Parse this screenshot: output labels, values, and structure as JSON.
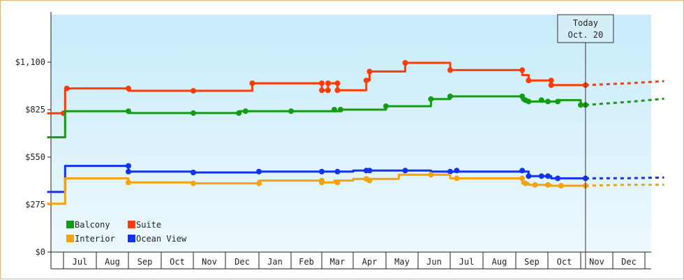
{
  "chart_data": {
    "type": "line",
    "title": "",
    "xlabel": "",
    "ylabel": "",
    "ylim": [
      0,
      1375
    ],
    "yticks": [
      {
        "value": 0,
        "label": "$0"
      },
      {
        "value": 275,
        "label": "$275"
      },
      {
        "value": 550,
        "label": "$550"
      },
      {
        "value": 825,
        "label": "$825"
      },
      {
        "value": 1100,
        "label": "$1,100"
      }
    ],
    "x_months": [
      "Jul",
      "Aug",
      "Sep",
      "Oct",
      "Nov",
      "Dec",
      "Jan",
      "Feb",
      "Mar",
      "Apr",
      "May",
      "Jun",
      "Jul",
      "Aug",
      "Sep",
      "Oct",
      "Nov",
      "Dec"
    ],
    "grid": false,
    "legend_position": "bottom-left",
    "today": {
      "title": "Today",
      "date": "Oct. 20",
      "x": 16.15
    },
    "series": [
      {
        "name": "Suite",
        "color": "#ff3a05",
        "points": [
          [
            -0.5,
            804
          ],
          [
            0.05,
            804
          ],
          [
            0.05,
            948
          ],
          [
            2.0,
            948
          ],
          [
            2.0,
            934
          ],
          [
            4.0,
            934
          ],
          [
            4.0,
            934
          ],
          [
            5.8,
            934
          ],
          [
            5.8,
            978
          ],
          [
            8.0,
            978
          ],
          [
            8.0,
            937
          ],
          [
            8.2,
            937
          ],
          [
            8.2,
            978
          ],
          [
            8.5,
            978
          ],
          [
            8.5,
            937
          ],
          [
            9.4,
            937
          ],
          [
            9.4,
            994
          ],
          [
            9.5,
            994
          ],
          [
            9.5,
            1046
          ],
          [
            10.6,
            1046
          ],
          [
            10.6,
            1096
          ],
          [
            12.0,
            1096
          ],
          [
            12.0,
            1054
          ],
          [
            14.2,
            1054
          ],
          [
            14.2,
            1025
          ],
          [
            14.4,
            1025
          ],
          [
            14.4,
            994
          ],
          [
            15.1,
            994
          ],
          [
            15.1,
            967
          ],
          [
            16.15,
            967
          ]
        ],
        "forecast": [
          [
            16.15,
            967
          ],
          [
            17.5,
            978
          ],
          [
            18.6,
            990
          ]
        ]
      },
      {
        "name": "Balcony",
        "color": "#129c12",
        "points": [
          [
            -0.5,
            665
          ],
          [
            0.05,
            665
          ],
          [
            0.05,
            816
          ],
          [
            2.0,
            816
          ],
          [
            2.0,
            805
          ],
          [
            4.0,
            805
          ],
          [
            4.0,
            805
          ],
          [
            5.4,
            805
          ],
          [
            5.4,
            816
          ],
          [
            7.0,
            816
          ],
          [
            7.0,
            816
          ],
          [
            8.6,
            816
          ],
          [
            8.6,
            825
          ],
          [
            10.0,
            825
          ],
          [
            10.0,
            845
          ],
          [
            11.4,
            845
          ],
          [
            11.4,
            886
          ],
          [
            12.0,
            886
          ],
          [
            12.0,
            902
          ],
          [
            14.2,
            902
          ],
          [
            14.2,
            880
          ],
          [
            14.4,
            880
          ],
          [
            14.4,
            872
          ],
          [
            15.3,
            872
          ],
          [
            15.3,
            880
          ],
          [
            16.0,
            880
          ],
          [
            16.0,
            852
          ],
          [
            16.15,
            852
          ]
        ],
        "forecast": [
          [
            16.15,
            852
          ],
          [
            17.5,
            870
          ],
          [
            18.6,
            888
          ]
        ]
      },
      {
        "name": "Ocean View",
        "color": "#1132ee",
        "points": [
          [
            -0.5,
            348
          ],
          [
            0.05,
            348
          ],
          [
            0.05,
            499
          ],
          [
            2.0,
            499
          ],
          [
            2.0,
            466
          ],
          [
            4.0,
            466
          ],
          [
            4.0,
            461
          ],
          [
            6.0,
            461
          ],
          [
            6.0,
            466
          ],
          [
            9.0,
            466
          ],
          [
            9.0,
            472
          ],
          [
            11.4,
            472
          ],
          [
            11.4,
            466
          ],
          [
            14.4,
            466
          ],
          [
            14.4,
            440
          ],
          [
            15.1,
            440
          ],
          [
            15.1,
            427
          ],
          [
            16.15,
            427
          ]
        ],
        "forecast": [
          [
            16.15,
            427
          ],
          [
            17.5,
            428
          ],
          [
            18.6,
            432
          ]
        ]
      },
      {
        "name": "Interior",
        "color": "#f5a20d",
        "points": [
          [
            -0.5,
            280
          ],
          [
            0.05,
            280
          ],
          [
            0.05,
            427
          ],
          [
            2.0,
            427
          ],
          [
            2.0,
            403
          ],
          [
            4.0,
            403
          ],
          [
            4.0,
            398
          ],
          [
            6.0,
            398
          ],
          [
            6.0,
            414
          ],
          [
            8.0,
            414
          ],
          [
            8.0,
            403
          ],
          [
            8.4,
            403
          ],
          [
            8.4,
            414
          ],
          [
            9.0,
            414
          ],
          [
            9.0,
            424
          ],
          [
            10.4,
            424
          ],
          [
            10.4,
            448
          ],
          [
            12.0,
            448
          ],
          [
            12.0,
            427
          ],
          [
            14.2,
            427
          ],
          [
            14.2,
            398
          ],
          [
            14.4,
            398
          ],
          [
            14.4,
            389
          ],
          [
            15.1,
            389
          ],
          [
            15.1,
            384
          ],
          [
            16.15,
            384
          ]
        ],
        "forecast": [
          [
            16.15,
            384
          ],
          [
            17.5,
            390
          ],
          [
            18.6,
            390
          ]
        ]
      }
    ],
    "markers": {
      "Suite": [
        [
          0.0,
          804
        ],
        [
          0.1,
          948
        ],
        [
          2.0,
          948
        ],
        [
          4.0,
          934
        ],
        [
          5.8,
          978
        ],
        [
          8.0,
          978
        ],
        [
          8.0,
          937
        ],
        [
          8.2,
          937
        ],
        [
          8.2,
          978
        ],
        [
          8.5,
          978
        ],
        [
          8.5,
          937
        ],
        [
          9.4,
          994
        ],
        [
          9.5,
          1046
        ],
        [
          10.6,
          1096
        ],
        [
          12.0,
          1054
        ],
        [
          14.2,
          1054
        ],
        [
          14.4,
          994
        ],
        [
          15.1,
          994
        ],
        [
          15.1,
          967
        ],
        [
          16.15,
          967
        ]
      ],
      "Balcony": [
        [
          2.0,
          816
        ],
        [
          4.0,
          805
        ],
        [
          5.4,
          805
        ],
        [
          5.6,
          816
        ],
        [
          7.0,
          816
        ],
        [
          8.4,
          825
        ],
        [
          8.6,
          825
        ],
        [
          10.0,
          845
        ],
        [
          11.4,
          886
        ],
        [
          12.0,
          902
        ],
        [
          14.2,
          902
        ],
        [
          14.3,
          880
        ],
        [
          14.4,
          872
        ],
        [
          14.8,
          880
        ],
        [
          15.0,
          872
        ],
        [
          15.3,
          872
        ],
        [
          16.0,
          852
        ],
        [
          16.15,
          852
        ]
      ],
      "Ocean View": [
        [
          2.0,
          499
        ],
        [
          2.0,
          466
        ],
        [
          4.0,
          461
        ],
        [
          6.0,
          466
        ],
        [
          8.0,
          466
        ],
        [
          8.5,
          466
        ],
        [
          9.4,
          472
        ],
        [
          9.5,
          472
        ],
        [
          10.6,
          472
        ],
        [
          12.0,
          466
        ],
        [
          12.2,
          472
        ],
        [
          14.2,
          472
        ],
        [
          14.4,
          440
        ],
        [
          14.8,
          440
        ],
        [
          15.0,
          440
        ],
        [
          15.3,
          427
        ],
        [
          16.15,
          427
        ]
      ],
      "Interior": [
        [
          2.0,
          403
        ],
        [
          4.0,
          398
        ],
        [
          6.0,
          398
        ],
        [
          8.0,
          414
        ],
        [
          8.0,
          403
        ],
        [
          8.5,
          403
        ],
        [
          9.4,
          424
        ],
        [
          9.5,
          414
        ],
        [
          11.4,
          448
        ],
        [
          12.2,
          427
        ],
        [
          14.2,
          427
        ],
        [
          14.3,
          398
        ],
        [
          14.6,
          389
        ],
        [
          15.0,
          389
        ],
        [
          15.4,
          384
        ],
        [
          16.15,
          384
        ]
      ]
    },
    "legend": [
      {
        "name": "Balcony",
        "color": "#129c12"
      },
      {
        "name": "Suite",
        "color": "#ff3a05"
      },
      {
        "name": "Interior",
        "color": "#f5a20d"
      },
      {
        "name": "Ocean View",
        "color": "#1132ee"
      }
    ]
  }
}
